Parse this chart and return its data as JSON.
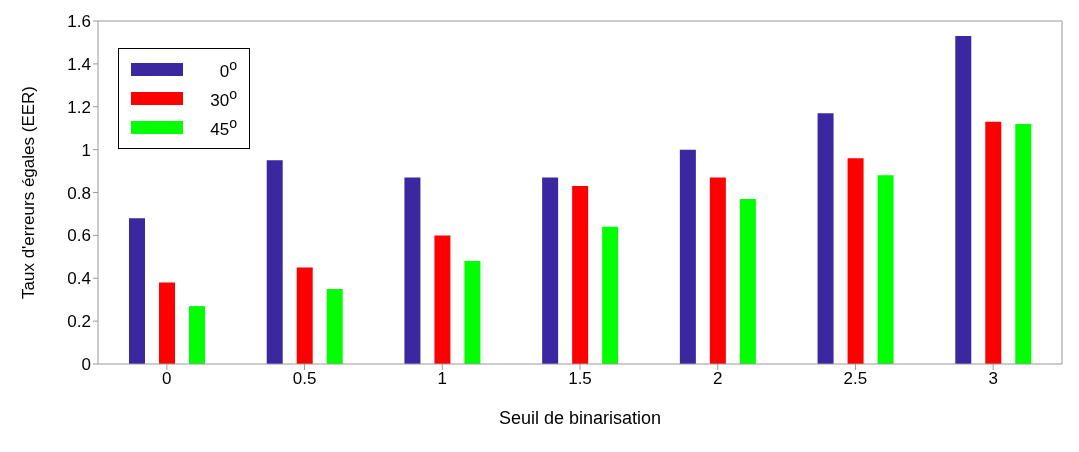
{
  "chart_data": {
    "type": "bar",
    "xlabel": "Seuil de binarisation",
    "ylabel": "Taux d'erreurs égales (EER)",
    "categories": [
      "0",
      "0.5",
      "1",
      "1.5",
      "2",
      "2.5",
      "3"
    ],
    "series": [
      {
        "name": "0$^{o}$",
        "color": "#3b27a0",
        "values": [
          0.68,
          0.95,
          0.87,
          0.87,
          1.0,
          1.17,
          1.53
        ]
      },
      {
        "name": "30$^{o}$",
        "color": "#ff0000",
        "values": [
          0.38,
          0.45,
          0.6,
          0.83,
          0.87,
          0.96,
          1.13
        ]
      },
      {
        "name": "45$^{o}$",
        "color": "#00ff00",
        "values": [
          0.27,
          0.35,
          0.48,
          0.64,
          0.77,
          0.88,
          1.12
        ]
      }
    ],
    "ylim": [
      0,
      1.6
    ],
    "yticks": [
      0,
      0.2,
      0.4,
      0.6,
      0.8,
      1,
      1.2,
      1.4,
      1.6
    ],
    "grid": false,
    "legend": "top left"
  }
}
